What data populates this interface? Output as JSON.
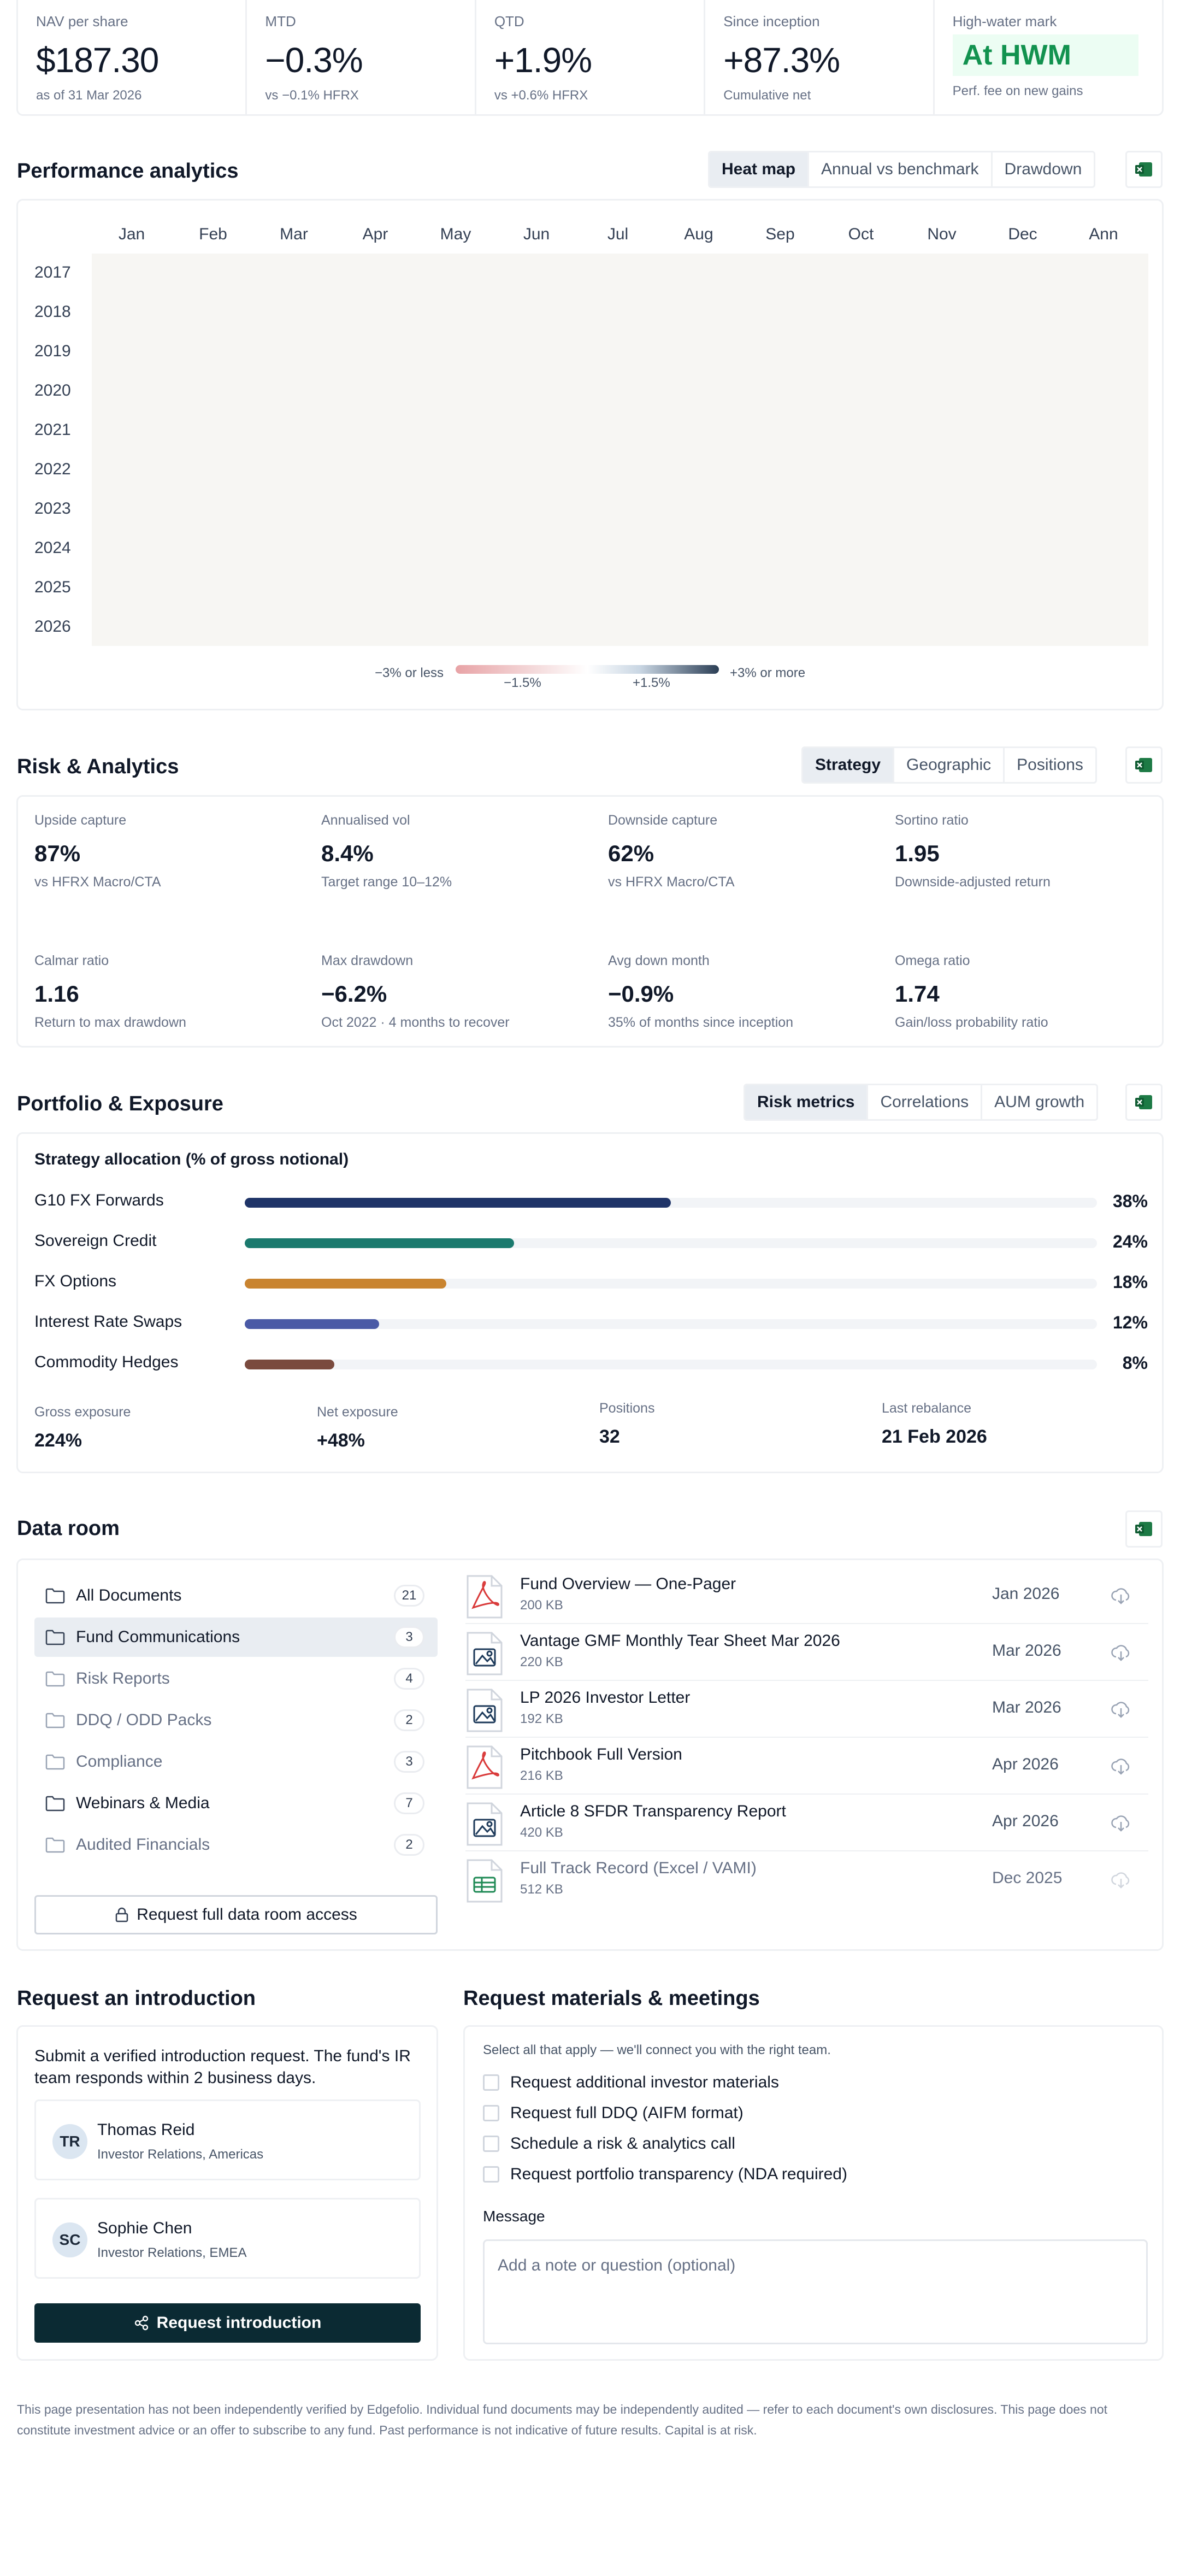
{
  "kpis": [
    {
      "label": "NAV per share",
      "value": "$187.30",
      "sub": "as of 31 Mar 2026"
    },
    {
      "label": "MTD",
      "value": "−0.3%",
      "sub": "vs −0.1% HFRX"
    },
    {
      "label": "QTD",
      "value": "+1.9%",
      "sub": "vs +0.6% HFRX"
    },
    {
      "label": "Since inception",
      "value": "+87.3%",
      "sub": "Cumulative net"
    },
    {
      "label": "High-water mark",
      "value": "At HWM",
      "sub": "Perf. fee on new gains"
    }
  ],
  "performance": {
    "title": "Performance analytics",
    "tabs": [
      "Heat map",
      "Annual vs benchmark",
      "Drawdown"
    ],
    "active_tab": "Heat map",
    "months": [
      "Jan",
      "Feb",
      "Mar",
      "Apr",
      "May",
      "Jun",
      "Jul",
      "Aug",
      "Sep",
      "Oct",
      "Nov",
      "Dec",
      "Ann"
    ],
    "years": [
      "2017",
      "2018",
      "2019",
      "2020",
      "2021",
      "2022",
      "2023",
      "2024",
      "2025",
      "2026"
    ],
    "legend": {
      "low": "−3% or less",
      "mid_neg": "−1.5%",
      "mid_pos": "+1.5%",
      "high": "+3% or more"
    },
    "colors": {
      "neg": "#e8a3a6",
      "pos": "#2b3e55",
      "grid_bg": "#f7f6f3"
    }
  },
  "risk": {
    "title": "Risk & Analytics",
    "tabs": [
      "Strategy",
      "Geographic",
      "Positions"
    ],
    "active_tab": "Strategy",
    "metrics": [
      {
        "label": "Upside capture",
        "value": "87%",
        "sub": "vs HFRX Macro/CTA"
      },
      {
        "label": "Annualised vol",
        "value": "8.4%",
        "sub": "Target range 10–12%"
      },
      {
        "label": "Downside capture",
        "value": "62%",
        "sub": "vs HFRX Macro/CTA"
      },
      {
        "label": "Sortino ratio",
        "value": "1.95",
        "sub": "Downside-adjusted return"
      },
      {
        "label": "Calmar ratio",
        "value": "1.16",
        "sub": "Return to max drawdown"
      },
      {
        "label": "Max drawdown",
        "value": "−6.2%",
        "sub": "Oct 2022 · 4 months to recover"
      },
      {
        "label": "Avg down month",
        "value": "−0.9%",
        "sub": "35% of months since inception"
      },
      {
        "label": "Omega ratio",
        "value": "1.74",
        "sub": "Gain/loss probability ratio"
      }
    ]
  },
  "portfolio": {
    "title": "Portfolio & Exposure",
    "tabs": [
      "Risk metrics",
      "Correlations",
      "AUM growth"
    ],
    "active_tab": "Risk metrics",
    "allocation_title": "Strategy allocation (% of gross notional)",
    "allocations": [
      {
        "name": "G10 FX Forwards",
        "pct_label": "38%",
        "value": 38,
        "color": "#1f3468"
      },
      {
        "name": "Sovereign Credit",
        "pct_label": "24%",
        "value": 24,
        "color": "#1b7a6e"
      },
      {
        "name": "FX Options",
        "pct_label": "18%",
        "value": 18,
        "color": "#c98430"
      },
      {
        "name": "Interest Rate Swaps",
        "pct_label": "12%",
        "value": 12,
        "color": "#4a5aa6"
      },
      {
        "name": "Commodity Hedges",
        "pct_label": "8%",
        "value": 8,
        "color": "#7a4a3e"
      }
    ],
    "exposure": [
      {
        "label": "Gross exposure",
        "value": "224%"
      },
      {
        "label": "Net exposure",
        "value": "+48%"
      },
      {
        "label": "Positions",
        "value": "32"
      },
      {
        "label": "Last rebalance",
        "value": "21 Feb 2026"
      }
    ]
  },
  "dataroom": {
    "title": "Data room",
    "folders": [
      {
        "name": "All Documents",
        "count": "21",
        "state": "normal"
      },
      {
        "name": "Fund Communications",
        "count": "3",
        "state": "active"
      },
      {
        "name": "Risk Reports",
        "count": "4",
        "state": "muted"
      },
      {
        "name": "DDQ / ODD Packs",
        "count": "2",
        "state": "muted"
      },
      {
        "name": "Compliance",
        "count": "3",
        "state": "muted"
      },
      {
        "name": "Webinars & Media",
        "count": "7",
        "state": "normal"
      },
      {
        "name": "Audited Financials",
        "count": "2",
        "state": "muted"
      }
    ],
    "access_button": "Request full data room access",
    "documents": [
      {
        "name": "Fund Overview — One-Pager",
        "size": "200 KB",
        "date": "Jan 2026",
        "icon": "pdf-icon"
      },
      {
        "name": "Vantage GMF Monthly Tear Sheet Mar 2026",
        "size": "220 KB",
        "date": "Mar 2026",
        "icon": "image-file-icon"
      },
      {
        "name": "LP 2026 Investor Letter",
        "size": "192 KB",
        "date": "Mar 2026",
        "icon": "image-file-icon"
      },
      {
        "name": "Pitchbook Full Version",
        "size": "216 KB",
        "date": "Apr 2026",
        "icon": "pdf-icon"
      },
      {
        "name": "Article 8 SFDR Transparency Report",
        "size": "420 KB",
        "date": "Apr 2026",
        "icon": "image-file-icon"
      },
      {
        "name": "Full Track Record (Excel / VAMI)",
        "size": "512 KB",
        "date": "Dec 2025",
        "icon": "spreadsheet-icon"
      }
    ]
  },
  "intro": {
    "title": "Request an introduction",
    "description": "Submit a verified introduction request. The fund's IR team responds within 2 business days.",
    "contacts": [
      {
        "initials": "TR",
        "name": "Thomas Reid",
        "role": "Investor Relations, Americas"
      },
      {
        "initials": "SC",
        "name": "Sophie Chen",
        "role": "Investor Relations, EMEA"
      }
    ],
    "button": "Request introduction"
  },
  "materials": {
    "title": "Request materials & meetings",
    "hint": "Select all that apply — we'll connect you with the right team.",
    "options": [
      "Request additional investor materials",
      "Request full DDQ (AIFM format)",
      "Schedule a risk & analytics call",
      "Request portfolio transparency (NDA required)"
    ],
    "message_label": "Message",
    "message_placeholder": "Add a note or question (optional)"
  },
  "disclaimer": "This page presentation has not been independently verified by Edgefolio. Individual fund documents may be independently audited — refer to each document's own disclosures. This page does not constitute investment advice or an offer to subscribe to any fund. Past performance is not indicative of future results. Capital is at risk."
}
